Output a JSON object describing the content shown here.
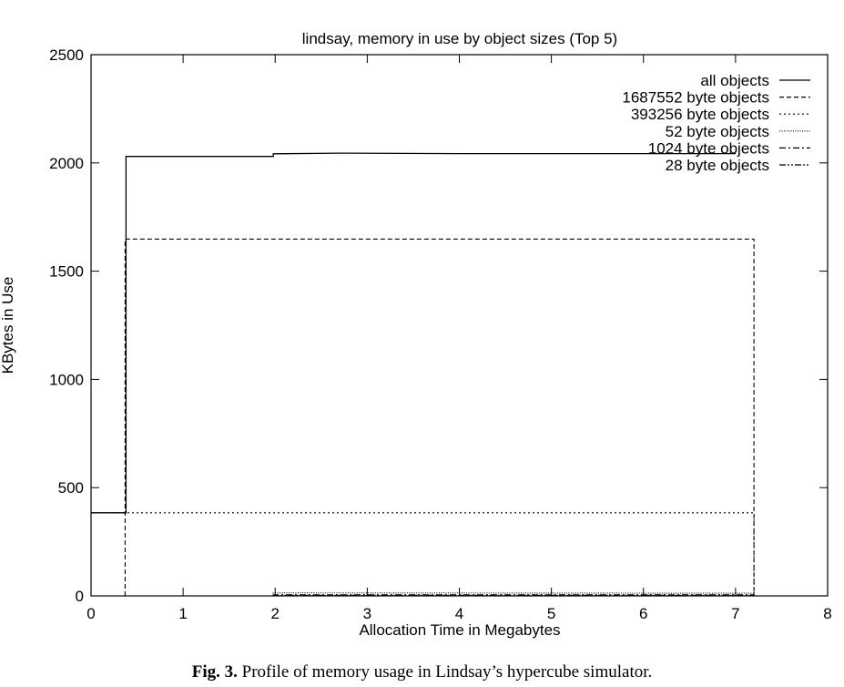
{
  "caption": {
    "label": "Fig. 3.",
    "text": "Profile of memory usage in Lindsay’s hypercube simulator."
  },
  "chart_data": {
    "type": "line",
    "title": "lindsay, memory in use by object sizes (Top 5)",
    "xlabel": "Allocation Time in Megabytes",
    "ylabel": "KBytes in Use",
    "xlim": [
      0,
      8
    ],
    "ylim": [
      0,
      2500
    ],
    "xticks": [
      "0",
      "1",
      "2",
      "3",
      "4",
      "5",
      "6",
      "7",
      "8"
    ],
    "yticks": [
      "0",
      "500",
      "1000",
      "1500",
      "2000",
      "2500"
    ],
    "legend_position": "top-right",
    "line_color": "#000000",
    "series": [
      {
        "name": "all objects",
        "dash": "solid",
        "points": [
          [
            0,
            384
          ],
          [
            0.38,
            384
          ],
          [
            0.38,
            2030
          ],
          [
            1.98,
            2030
          ],
          [
            1.98,
            2042
          ],
          [
            2.7,
            2045
          ],
          [
            4,
            2043
          ],
          [
            5.5,
            2043
          ],
          [
            7.0,
            2043
          ]
        ]
      },
      {
        "name": "1687552 byte objects",
        "dash": "dashed",
        "points": [
          [
            0.37,
            0
          ],
          [
            0.37,
            1648
          ],
          [
            7.2,
            1648
          ],
          [
            7.2,
            0
          ]
        ]
      },
      {
        "name": "393256 byte objects",
        "dash": "dotted",
        "points": [
          [
            0,
            384
          ],
          [
            7.2,
            384
          ],
          [
            7.2,
            0
          ]
        ]
      },
      {
        "name": "52 byte objects",
        "dash": "fine-dotted",
        "points": [
          [
            1.98,
            0
          ],
          [
            1.98,
            14
          ],
          [
            7.2,
            12
          ],
          [
            7.2,
            0
          ]
        ]
      },
      {
        "name": "1024 byte objects",
        "dash": "dash-dot",
        "points": [
          [
            1.98,
            0
          ],
          [
            1.98,
            5
          ],
          [
            7.2,
            5
          ],
          [
            7.2,
            0
          ]
        ]
      },
      {
        "name": "28 byte objects",
        "dash": "dash-dot-dot",
        "points": [
          [
            1.98,
            0
          ],
          [
            1.98,
            3
          ],
          [
            7.2,
            3
          ],
          [
            7.2,
            0
          ]
        ]
      }
    ]
  }
}
